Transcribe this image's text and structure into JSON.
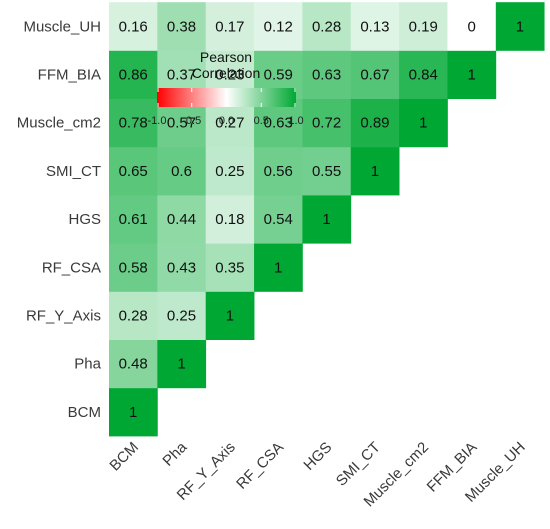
{
  "chart_data": {
    "type": "heatmap",
    "title": "",
    "labels": [
      "BCM",
      "Pha",
      "RF_Y_Axis",
      "RF_CSA",
      "HGS",
      "SMI_CT",
      "Muscle_cm2",
      "FFM_BIA",
      "Muscle_UH"
    ],
    "matrix": [
      [
        1,
        null,
        null,
        null,
        null,
        null,
        null,
        null,
        null
      ],
      [
        0.48,
        1,
        null,
        null,
        null,
        null,
        null,
        null,
        null
      ],
      [
        0.28,
        0.25,
        1,
        null,
        null,
        null,
        null,
        null,
        null
      ],
      [
        0.58,
        0.43,
        0.35,
        1,
        null,
        null,
        null,
        null,
        null
      ],
      [
        0.61,
        0.44,
        0.18,
        0.54,
        1,
        null,
        null,
        null,
        null
      ],
      [
        0.65,
        0.6,
        0.25,
        0.56,
        0.55,
        1,
        null,
        null,
        null
      ],
      [
        0.78,
        0.57,
        0.27,
        0.63,
        0.72,
        0.89,
        1,
        null,
        null
      ],
      [
        0.86,
        0.37,
        0.23,
        0.59,
        0.63,
        0.67,
        0.84,
        1,
        null
      ],
      [
        0.16,
        0.38,
        0.17,
        0.12,
        0.28,
        0.13,
        0.19,
        0,
        1
      ]
    ],
    "display_labels": [
      [
        "1"
      ],
      [
        "0.48",
        "1"
      ],
      [
        "0.28",
        "0.25",
        "1"
      ],
      [
        "0.58",
        "0.43",
        "0.35",
        "1"
      ],
      [
        "0.61",
        "0.44",
        "0.18",
        "0.54",
        "1"
      ],
      [
        "0.65",
        "0.6",
        "0.25",
        "0.56",
        "0.55",
        "1"
      ],
      [
        "0.78",
        "0.57",
        "0.27",
        "0.63",
        "0.72",
        "0.89",
        "1"
      ],
      [
        "0.86",
        "0.37",
        "0.23",
        "0.59",
        "0.63",
        "0.67",
        "0.84",
        "1"
      ],
      [
        "0.16",
        "0.38",
        "0.17",
        "0.12",
        "0.28",
        "0.13",
        "0.19",
        "0",
        "1"
      ]
    ],
    "legend": {
      "title_line1": "Pearson",
      "title_line2": "Correlation",
      "ticks": [
        "-1.0",
        "-0.5",
        "0.0",
        "0.5",
        "1.0"
      ],
      "range": [
        -1,
        1
      ]
    },
    "colors": {
      "low": "#ff0000",
      "mid": "#ffffff",
      "high": "#00a833"
    }
  }
}
